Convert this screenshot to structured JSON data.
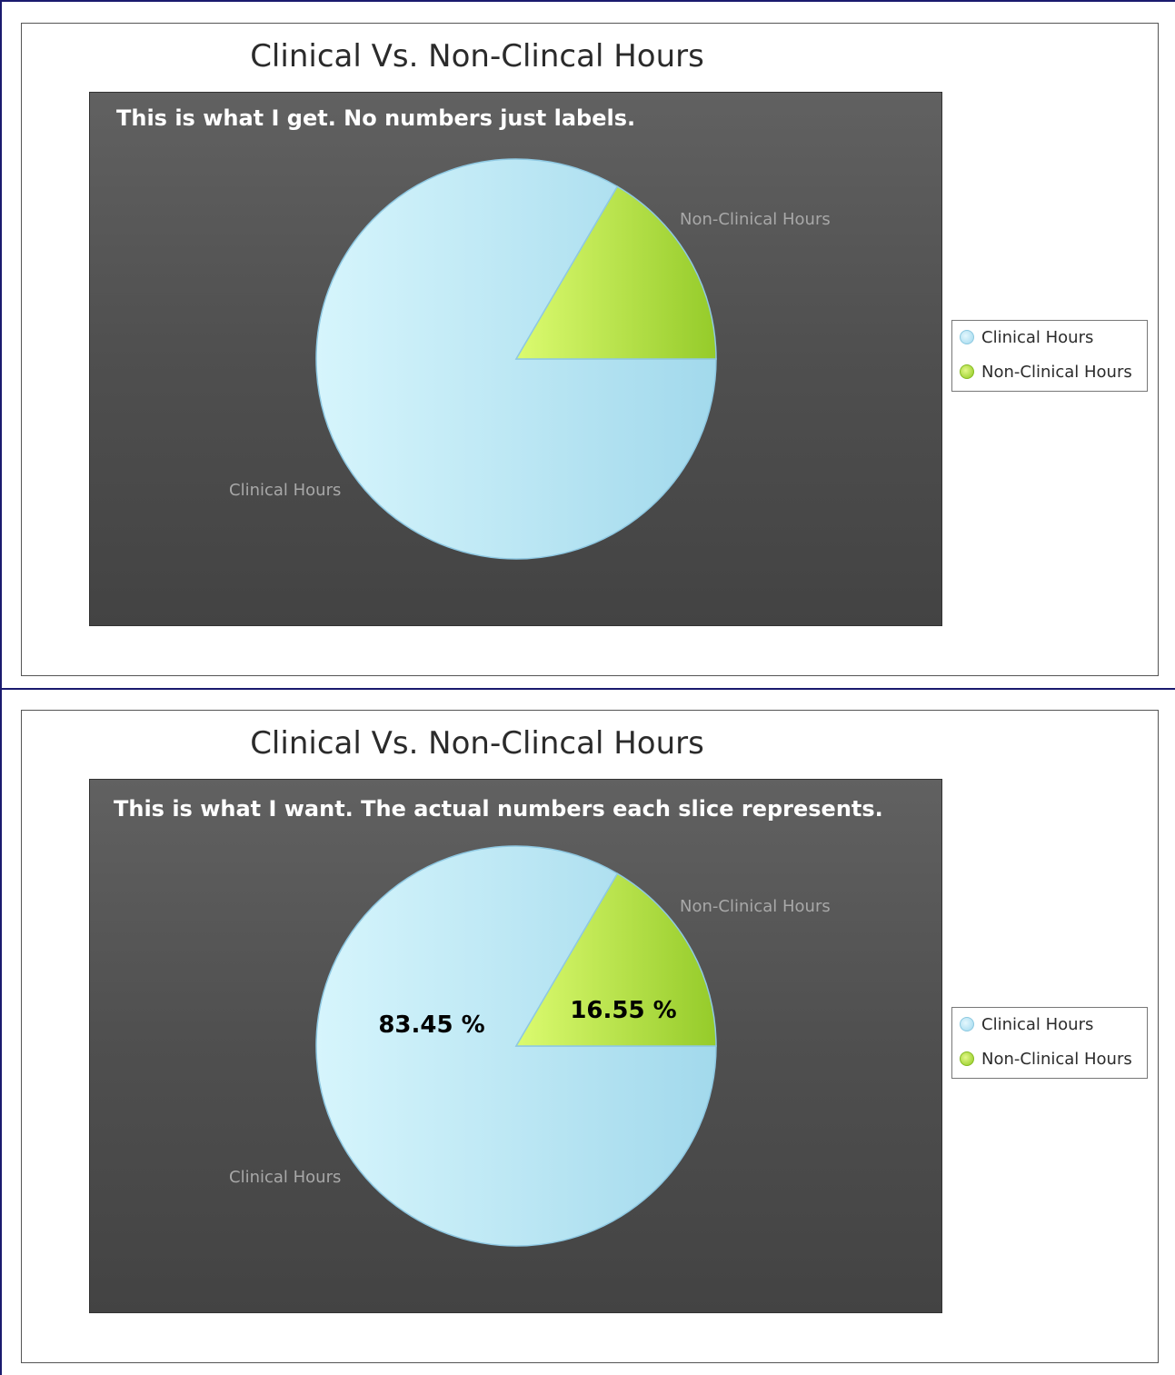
{
  "colors": {
    "clinical": "#bde7f4",
    "non_clinical": "#b8e04c",
    "category_label": "#a8a8a8",
    "value_label": "#000000"
  },
  "chart_data": [
    {
      "type": "pie",
      "title": "Clinical Vs. Non-Clincal Hours",
      "annotation": "This is what I get. No numbers just labels.",
      "categories": [
        "Clinical Hours",
        "Non-Clinical Hours"
      ],
      "values": [
        83.45,
        16.55
      ],
      "show_values": false,
      "legend": {
        "placement": "right",
        "items": [
          "Clinical Hours",
          "Non-Clinical Hours"
        ]
      }
    },
    {
      "type": "pie",
      "title": "Clinical Vs. Non-Clincal Hours",
      "annotation": "This is what I want. The actual numbers each slice represents.",
      "categories": [
        "Clinical Hours",
        "Non-Clinical Hours"
      ],
      "values": [
        83.45,
        16.55
      ],
      "value_labels": [
        "83.45 %",
        "16.55 %"
      ],
      "show_values": true,
      "legend": {
        "placement": "right",
        "items": [
          "Clinical Hours",
          "Non-Clinical Hours"
        ]
      }
    }
  ]
}
